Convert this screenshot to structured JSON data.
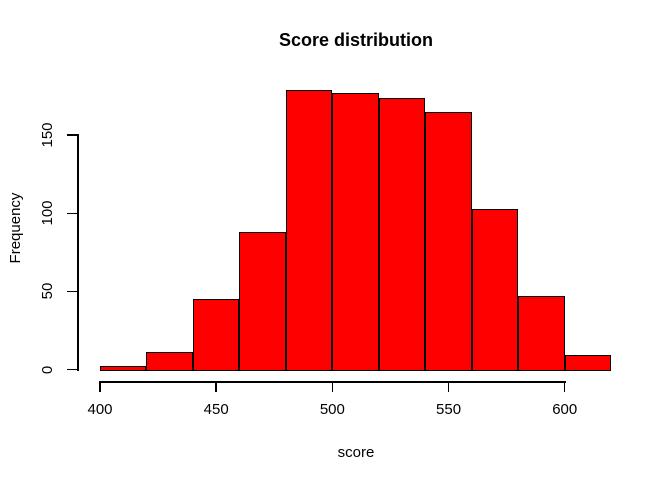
{
  "figure": {
    "background_color": "#FFFFFF",
    "text_color": "#000000"
  },
  "chart_data": {
    "type": "bar",
    "chart_kind": "histogram",
    "title": "Score distribution",
    "xlabel": "score",
    "ylabel": "Frequency",
    "bin_edges": [
      400,
      420,
      440,
      460,
      480,
      500,
      520,
      540,
      560,
      580,
      600,
      620
    ],
    "counts": [
      2,
      11,
      45,
      88,
      179,
      177,
      174,
      165,
      103,
      47,
      9
    ],
    "x_ticks": [
      400,
      450,
      500,
      550,
      600
    ],
    "y_ticks": [
      0,
      50,
      100,
      150
    ],
    "xlim": [
      400,
      620
    ],
    "ylim": [
      0,
      179
    ],
    "bar_color": "#FF0000",
    "bar_border_color": "#000000",
    "axis_color": "#000000",
    "grid": "off",
    "legend": "none"
  }
}
